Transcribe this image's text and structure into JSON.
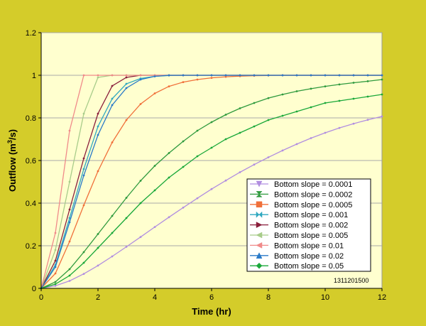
{
  "chart_data": {
    "type": "line",
    "xlabel": "Time (hr)",
    "ylabel": "Outflow (m³/s)",
    "ylabel_base": "Outflow (m",
    "ylabel_sup": "3",
    "ylabel_tail": "/s)",
    "xlim": [
      0,
      12
    ],
    "ylim": [
      0,
      1.2
    ],
    "xticks": [
      0,
      2,
      4,
      6,
      8,
      10,
      12
    ],
    "yticks": [
      0,
      0.2,
      0.4,
      0.6,
      0.8,
      1,
      1.2
    ],
    "ytick_labels": [
      "0",
      "0.2",
      "0.4",
      "0.6",
      "0.8",
      "1",
      "1.2"
    ],
    "grid": "horizontal",
    "legend_position": "lower-right",
    "annotation": "1311201500",
    "series": [
      {
        "name": "Bottom slope = 0.0001",
        "color": "#b18ee0",
        "marker": "triangle-down",
        "x": [
          0,
          0.5,
          1,
          1.5,
          2,
          2.5,
          3,
          3.5,
          4,
          4.5,
          5,
          5.5,
          6,
          6.5,
          7,
          7.5,
          8,
          8.5,
          9,
          9.5,
          10,
          10.5,
          11,
          11.5,
          12
        ],
        "y": [
          0,
          0.012,
          0.035,
          0.068,
          0.107,
          0.15,
          0.195,
          0.241,
          0.288,
          0.334,
          0.379,
          0.423,
          0.466,
          0.506,
          0.545,
          0.581,
          0.615,
          0.647,
          0.677,
          0.705,
          0.73,
          0.753,
          0.773,
          0.791,
          0.807
        ]
      },
      {
        "name": "Bottom slope = 0.0002",
        "color": "#2f9a3e",
        "marker": "hourglass",
        "x": [
          0,
          0.5,
          1,
          1.5,
          2,
          2.5,
          3,
          3.5,
          4,
          4.5,
          5,
          5.5,
          6,
          6.5,
          7,
          7.5,
          8,
          8.5,
          9,
          9.5,
          10,
          10.5,
          11,
          11.5,
          12
        ],
        "y": [
          0,
          0.03,
          0.09,
          0.17,
          0.255,
          0.34,
          0.425,
          0.505,
          0.575,
          0.635,
          0.69,
          0.74,
          0.78,
          0.815,
          0.845,
          0.87,
          0.893,
          0.91,
          0.925,
          0.937,
          0.948,
          0.957,
          0.965,
          0.972,
          0.98
        ]
      },
      {
        "name": "Bottom slope = 0.0005",
        "color": "#f0703a",
        "marker": "square",
        "x": [
          0,
          0.5,
          1,
          1.5,
          2,
          2.5,
          3,
          3.5,
          4,
          4.5,
          5,
          5.5,
          6,
          6.5,
          7,
          7.5,
          8,
          8.5,
          9,
          9.5,
          10,
          10.5,
          11,
          11.5,
          12
        ],
        "y": [
          0,
          0.07,
          0.22,
          0.39,
          0.55,
          0.685,
          0.79,
          0.865,
          0.915,
          0.948,
          0.968,
          0.98,
          0.988,
          0.993,
          0.996,
          0.998,
          0.999,
          1,
          1,
          1,
          1,
          1,
          1,
          1,
          1
        ]
      },
      {
        "name": "Bottom slope = 0.001",
        "color": "#2fa8c0",
        "marker": "bowtie",
        "x": [
          0,
          0.5,
          1,
          1.5,
          2,
          2.5,
          3,
          3.5,
          4,
          4.5,
          5,
          5.5,
          6,
          6.5,
          7,
          7.5,
          8,
          8.5,
          9,
          9.5,
          10,
          10.5,
          11,
          11.5,
          12
        ],
        "y": [
          0,
          0.11,
          0.33,
          0.56,
          0.76,
          0.89,
          0.96,
          0.985,
          0.995,
          0.999,
          1,
          1,
          1,
          1,
          1,
          1,
          1,
          1,
          1,
          1,
          1,
          1,
          1,
          1,
          1
        ]
      },
      {
        "name": "Bottom slope = 0.002",
        "color": "#8a1e3c",
        "marker": "triangle-right",
        "x": [
          0,
          0.5,
          1,
          1.5,
          2,
          2.5,
          3,
          3.5,
          4,
          4.5,
          5,
          5.5,
          6,
          6.5,
          7,
          7.5,
          8,
          8.5,
          9,
          9.5,
          10,
          10.5,
          11,
          11.5,
          12
        ],
        "y": [
          0,
          0.13,
          0.37,
          0.61,
          0.82,
          0.95,
          0.99,
          1,
          1,
          1,
          1,
          1,
          1,
          1,
          1,
          1,
          1,
          1,
          1,
          1,
          1,
          1,
          1,
          1,
          1
        ]
      },
      {
        "name": "Bottom slope = 0.005",
        "color": "#a8cc8a",
        "marker": "triangle-left",
        "x": [
          0,
          0.5,
          1,
          1.5,
          2,
          2.5,
          3,
          3.5,
          4,
          4.5,
          5,
          5.5,
          6,
          6.5,
          7,
          7.5,
          8,
          8.5,
          9,
          9.5,
          10,
          10.5,
          11,
          11.5,
          12
        ],
        "y": [
          0,
          0.18,
          0.5,
          0.82,
          0.99,
          1,
          1,
          1,
          1,
          1,
          1,
          1,
          1,
          1,
          1,
          1,
          1,
          1,
          1,
          1,
          1,
          1,
          1,
          1,
          1
        ]
      },
      {
        "name": "Bottom slope = 0.01",
        "color": "#f08a8a",
        "marker": "triangle-left",
        "x": [
          0,
          0.5,
          1,
          1.5,
          2,
          2.5,
          3,
          3.5,
          4,
          4.5,
          5,
          5.5,
          6,
          6.5,
          7,
          7.5,
          8,
          8.5,
          9,
          9.5,
          10,
          10.5,
          11,
          11.5,
          12
        ],
        "y": [
          0,
          0.26,
          0.74,
          1,
          1,
          1,
          1,
          1,
          1,
          1,
          1,
          1,
          1,
          1,
          1,
          1,
          1,
          1,
          1,
          1,
          1,
          1,
          1,
          1,
          1
        ]
      },
      {
        "name": "Bottom slope = 0.02",
        "color": "#2a7ac8",
        "marker": "triangle-up",
        "x": [
          0,
          0.5,
          1,
          1.5,
          2,
          2.5,
          3,
          3.5,
          4,
          4.5,
          5,
          5.5,
          6,
          6.5,
          7,
          7.5,
          8,
          8.5,
          9,
          9.5,
          10,
          10.5,
          11,
          11.5,
          12
        ],
        "y": [
          0,
          0.1,
          0.31,
          0.53,
          0.72,
          0.86,
          0.94,
          0.98,
          0.995,
          1,
          1,
          1,
          1,
          1,
          1,
          1,
          1,
          1,
          1,
          1,
          1,
          1,
          1,
          1,
          1
        ]
      },
      {
        "name": "Bottom slope = 0.05",
        "color": "#1aa83a",
        "marker": "diamond",
        "x": [
          0,
          0.5,
          1,
          1.5,
          2,
          2.5,
          3,
          3.5,
          4,
          4.5,
          5,
          5.5,
          6,
          6.5,
          7,
          7.5,
          8,
          8.5,
          9,
          9.5,
          10,
          10.5,
          11,
          11.5,
          12
        ],
        "y": [
          0,
          0.02,
          0.06,
          0.12,
          0.19,
          0.26,
          0.33,
          0.4,
          0.46,
          0.52,
          0.57,
          0.62,
          0.66,
          0.7,
          0.73,
          0.76,
          0.79,
          0.81,
          0.83,
          0.85,
          0.87,
          0.88,
          0.89,
          0.9,
          0.91
        ]
      }
    ]
  }
}
